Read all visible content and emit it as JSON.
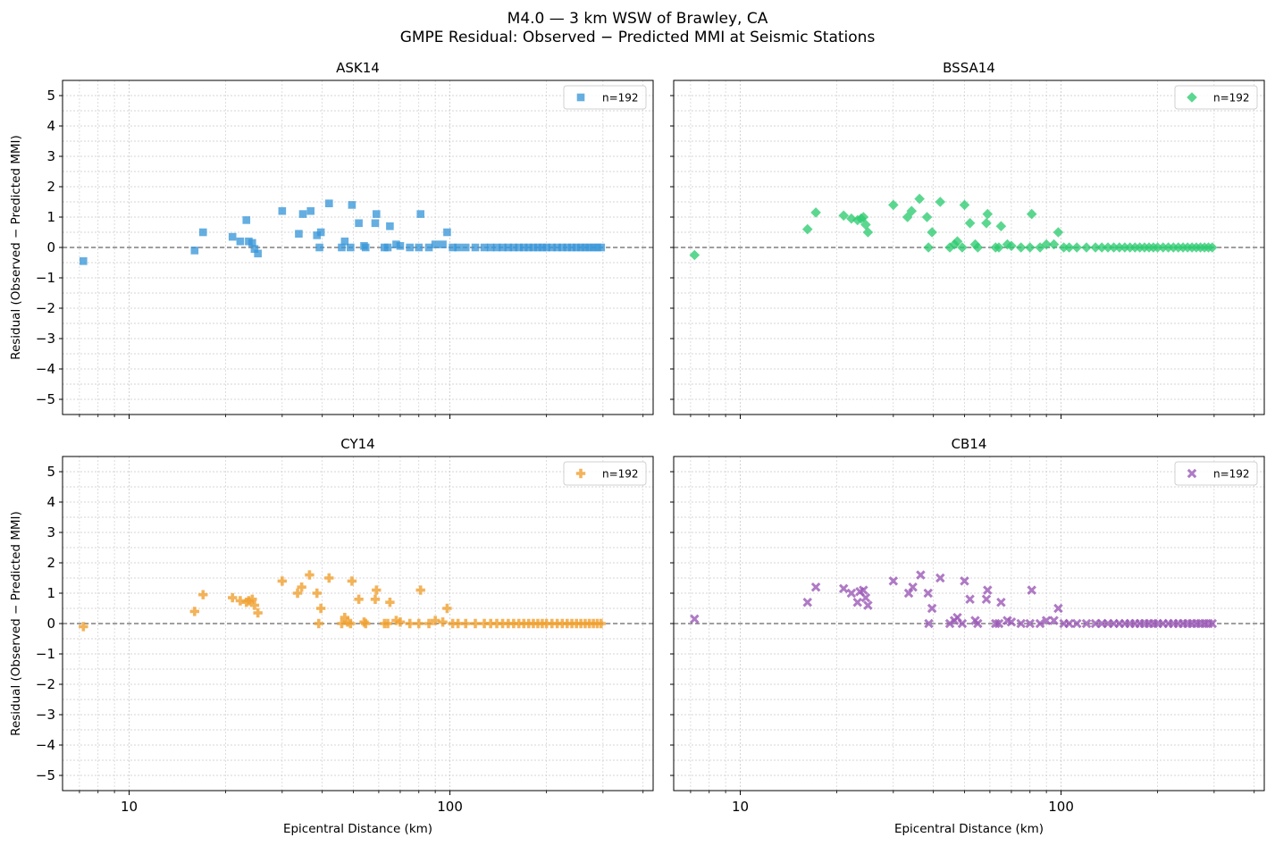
{
  "figure": {
    "title_line1": "M4.0 — 3 km WSW of Brawley, CA",
    "title_line2": "GMPE Residual: Observed − Predicted MMI at Seismic Stations"
  },
  "colors": {
    "ASK14": "#3a97d8",
    "BSSA14": "#2ecc71",
    "CY14": "#f0a030",
    "CB14": "#9b59b6"
  },
  "chart_data": [
    {
      "type": "scatter",
      "title": "ASK14",
      "marker": "square",
      "legend": "n=192",
      "legend_position": "upper-right",
      "xlabel": "",
      "ylabel": "Residual (Observed − Predicted MMI)",
      "x_scale": "log",
      "xlim": [
        6.2,
        430
      ],
      "ylim": [
        -5.5,
        5.5
      ],
      "x_ticks": [
        10,
        100
      ],
      "x_tick_labels": [
        "",
        ""
      ],
      "y_ticks": [
        -5,
        -4,
        -3,
        -2,
        -1,
        0,
        1,
        2,
        3,
        4,
        5
      ],
      "y_tick_labels": [
        "−5",
        "−4",
        "−3",
        "−2",
        "−1",
        "0",
        "1",
        "2",
        "3",
        "4",
        "5"
      ],
      "grid": true,
      "reference_line_y": 0,
      "points": [
        [
          7.2,
          -0.45
        ],
        [
          16,
          -0.1
        ],
        [
          17,
          0.5
        ],
        [
          21,
          0.35
        ],
        [
          22.2,
          0.2
        ],
        [
          23.2,
          0.9
        ],
        [
          23.6,
          0.2
        ],
        [
          24.2,
          0.15
        ],
        [
          24.6,
          -0.05
        ],
        [
          25.2,
          -0.2
        ],
        [
          30,
          1.2
        ],
        [
          33.8,
          0.45
        ],
        [
          34.8,
          1.1
        ],
        [
          36.8,
          1.2
        ],
        [
          38.5,
          0.4
        ],
        [
          39.2,
          0.0
        ],
        [
          39.6,
          0.5
        ],
        [
          42,
          1.45
        ],
        [
          46,
          0.0
        ],
        [
          47,
          0.2
        ],
        [
          49,
          0.0
        ],
        [
          49.5,
          1.4
        ],
        [
          52,
          0.8
        ],
        [
          54,
          0.05
        ],
        [
          54.6,
          0.0
        ],
        [
          58.5,
          0.8
        ],
        [
          59,
          1.1
        ],
        [
          62.5,
          0.0
        ],
        [
          64,
          0.0
        ],
        [
          65,
          0.7
        ],
        [
          68,
          0.1
        ],
        [
          70,
          0.05
        ],
        [
          75,
          0.0
        ],
        [
          80,
          0.0
        ],
        [
          81,
          1.1
        ],
        [
          86,
          0.0
        ],
        [
          90,
          0.1
        ],
        [
          95,
          0.1
        ],
        [
          98,
          0.5
        ],
        [
          102,
          0.0
        ],
        [
          106,
          0.0
        ],
        [
          112,
          0.0
        ],
        [
          120,
          0.0
        ],
        [
          128,
          0.0
        ],
        [
          134,
          0.0
        ],
        [
          140,
          0.0
        ],
        [
          146,
          0.0
        ],
        [
          152,
          0.0
        ],
        [
          158,
          0.0
        ],
        [
          164,
          0.0
        ],
        [
          170,
          0.0
        ],
        [
          176,
          0.0
        ],
        [
          182,
          0.0
        ],
        [
          188,
          0.0
        ],
        [
          194,
          0.0
        ],
        [
          200,
          0.0
        ],
        [
          208,
          0.0
        ],
        [
          216,
          0.0
        ],
        [
          224,
          0.0
        ],
        [
          232,
          0.0
        ],
        [
          240,
          0.0
        ],
        [
          248,
          0.0
        ],
        [
          256,
          0.0
        ],
        [
          264,
          0.0
        ],
        [
          272,
          0.0
        ],
        [
          280,
          0.0
        ],
        [
          288,
          0.0
        ],
        [
          296,
          0.0
        ]
      ]
    },
    {
      "type": "scatter",
      "title": "BSSA14",
      "marker": "diamond",
      "legend": "n=192",
      "legend_position": "upper-right",
      "xlabel": "",
      "ylabel": "",
      "x_scale": "log",
      "xlim": [
        6.2,
        430
      ],
      "ylim": [
        -5.5,
        5.5
      ],
      "x_ticks": [
        10,
        100
      ],
      "x_tick_labels": [
        "",
        ""
      ],
      "y_ticks": [
        -5,
        -4,
        -3,
        -2,
        -1,
        0,
        1,
        2,
        3,
        4,
        5
      ],
      "y_tick_labels": [
        "",
        "",
        "",
        "",
        "",
        "",
        "",
        "",
        "",
        "",
        ""
      ],
      "grid": true,
      "reference_line_y": 0,
      "points": [
        [
          7.2,
          -0.25
        ],
        [
          16.2,
          0.6
        ],
        [
          17.2,
          1.15
        ],
        [
          21,
          1.05
        ],
        [
          22.2,
          0.95
        ],
        [
          23.2,
          0.9
        ],
        [
          23.8,
          0.95
        ],
        [
          24.2,
          1.0
        ],
        [
          24.6,
          0.75
        ],
        [
          25,
          0.5
        ],
        [
          30,
          1.4
        ],
        [
          33.2,
          1.0
        ],
        [
          34.2,
          1.2
        ],
        [
          36.2,
          1.6
        ],
        [
          38.2,
          1.0
        ],
        [
          38.6,
          0.0
        ],
        [
          39.6,
          0.5
        ],
        [
          42,
          1.5
        ],
        [
          45,
          0.0
        ],
        [
          46.5,
          0.1
        ],
        [
          47.5,
          0.2
        ],
        [
          49.2,
          0.0
        ],
        [
          50,
          1.4
        ],
        [
          52,
          0.8
        ],
        [
          54,
          0.1
        ],
        [
          55,
          0.0
        ],
        [
          58.5,
          0.8
        ],
        [
          59,
          1.1
        ],
        [
          62.5,
          0.0
        ],
        [
          64,
          0.0
        ],
        [
          65,
          0.7
        ],
        [
          68,
          0.1
        ],
        [
          70,
          0.05
        ],
        [
          75,
          0.0
        ],
        [
          80,
          0.0
        ],
        [
          81,
          1.1
        ],
        [
          86,
          0.0
        ],
        [
          90,
          0.1
        ],
        [
          95,
          0.1
        ],
        [
          98,
          0.5
        ],
        [
          102,
          0.0
        ],
        [
          106,
          0.0
        ],
        [
          112,
          0.0
        ],
        [
          120,
          0.0
        ],
        [
          128,
          0.0
        ],
        [
          134,
          0.0
        ],
        [
          140,
          0.0
        ],
        [
          146,
          0.0
        ],
        [
          152,
          0.0
        ],
        [
          158,
          0.0
        ],
        [
          164,
          0.0
        ],
        [
          170,
          0.0
        ],
        [
          176,
          0.0
        ],
        [
          182,
          0.0
        ],
        [
          188,
          0.0
        ],
        [
          194,
          0.0
        ],
        [
          200,
          0.0
        ],
        [
          208,
          0.0
        ],
        [
          216,
          0.0
        ],
        [
          224,
          0.0
        ],
        [
          232,
          0.0
        ],
        [
          240,
          0.0
        ],
        [
          248,
          0.0
        ],
        [
          256,
          0.0
        ],
        [
          264,
          0.0
        ],
        [
          272,
          0.0
        ],
        [
          280,
          0.0
        ],
        [
          288,
          0.0
        ],
        [
          296,
          0.0
        ]
      ]
    },
    {
      "type": "scatter",
      "title": "CY14",
      "marker": "plus",
      "legend": "n=192",
      "legend_position": "upper-right",
      "xlabel": "Epicentral Distance (km)",
      "ylabel": "Residual (Observed − Predicted MMI)",
      "x_scale": "log",
      "xlim": [
        6.2,
        430
      ],
      "ylim": [
        -5.5,
        5.5
      ],
      "x_ticks": [
        10,
        100
      ],
      "x_tick_labels": [
        "10",
        "100"
      ],
      "y_ticks": [
        -5,
        -4,
        -3,
        -2,
        -1,
        0,
        1,
        2,
        3,
        4,
        5
      ],
      "y_tick_labels": [
        "−5",
        "−4",
        "−3",
        "−2",
        "−1",
        "0",
        "1",
        "2",
        "3",
        "4",
        "5"
      ],
      "grid": true,
      "reference_line_y": 0,
      "points": [
        [
          7.2,
          -0.1
        ],
        [
          16,
          0.4
        ],
        [
          17,
          0.95
        ],
        [
          21,
          0.85
        ],
        [
          22.2,
          0.75
        ],
        [
          23.2,
          0.7
        ],
        [
          23.6,
          0.75
        ],
        [
          24.2,
          0.8
        ],
        [
          24.6,
          0.6
        ],
        [
          25.2,
          0.35
        ],
        [
          30,
          1.4
        ],
        [
          33.5,
          1.0
        ],
        [
          34.5,
          1.2
        ],
        [
          36.5,
          1.6
        ],
        [
          38.5,
          1.0
        ],
        [
          39,
          0.0
        ],
        [
          39.6,
          0.5
        ],
        [
          42,
          1.5
        ],
        [
          46,
          0.0
        ],
        [
          47,
          0.2
        ],
        [
          48,
          0.05
        ],
        [
          49,
          0.0
        ],
        [
          49.5,
          1.4
        ],
        [
          52,
          0.8
        ],
        [
          54,
          0.05
        ],
        [
          54.6,
          0.0
        ],
        [
          58.5,
          0.8
        ],
        [
          59,
          1.1
        ],
        [
          62.5,
          0.0
        ],
        [
          64,
          0.0
        ],
        [
          65,
          0.7
        ],
        [
          68,
          0.1
        ],
        [
          70,
          0.05
        ],
        [
          75,
          0.0
        ],
        [
          80,
          0.0
        ],
        [
          81,
          1.1
        ],
        [
          86,
          0.0
        ],
        [
          90,
          0.1
        ],
        [
          95,
          0.05
        ],
        [
          98,
          0.5
        ],
        [
          102,
          0.0
        ],
        [
          106,
          0.0
        ],
        [
          112,
          0.0
        ],
        [
          120,
          0.0
        ],
        [
          128,
          0.0
        ],
        [
          134,
          0.0
        ],
        [
          140,
          0.0
        ],
        [
          146,
          0.0
        ],
        [
          152,
          0.0
        ],
        [
          158,
          0.0
        ],
        [
          164,
          0.0
        ],
        [
          170,
          0.0
        ],
        [
          176,
          0.0
        ],
        [
          182,
          0.0
        ],
        [
          188,
          0.0
        ],
        [
          194,
          0.0
        ],
        [
          200,
          0.0
        ],
        [
          208,
          0.0
        ],
        [
          216,
          0.0
        ],
        [
          224,
          0.0
        ],
        [
          232,
          0.0
        ],
        [
          240,
          0.0
        ],
        [
          248,
          0.0
        ],
        [
          256,
          0.0
        ],
        [
          264,
          0.0
        ],
        [
          272,
          0.0
        ],
        [
          280,
          0.0
        ],
        [
          288,
          0.0
        ],
        [
          296,
          0.0
        ]
      ]
    },
    {
      "type": "scatter",
      "title": "CB14",
      "marker": "x",
      "legend": "n=192",
      "legend_position": "upper-right",
      "xlabel": "Epicentral Distance (km)",
      "ylabel": "",
      "x_scale": "log",
      "xlim": [
        6.2,
        430
      ],
      "ylim": [
        -5.5,
        5.5
      ],
      "x_ticks": [
        10,
        100
      ],
      "x_tick_labels": [
        "10",
        "100"
      ],
      "y_ticks": [
        -5,
        -4,
        -3,
        -2,
        -1,
        0,
        1,
        2,
        3,
        4,
        5
      ],
      "y_tick_labels": [
        "",
        "",
        "",
        "",
        "",
        "",
        "",
        "",
        "",
        "",
        ""
      ],
      "grid": true,
      "reference_line_y": 0,
      "points": [
        [
          7.2,
          0.15
        ],
        [
          16.2,
          0.7
        ],
        [
          17.2,
          1.2
        ],
        [
          21,
          1.15
        ],
        [
          22.2,
          1.0
        ],
        [
          23.2,
          0.7
        ],
        [
          23.6,
          1.05
        ],
        [
          24.2,
          1.1
        ],
        [
          24.6,
          0.85
        ],
        [
          25,
          0.6
        ],
        [
          30,
          1.4
        ],
        [
          33.5,
          1.0
        ],
        [
          34.5,
          1.2
        ],
        [
          36.5,
          1.6
        ],
        [
          38.5,
          1.0
        ],
        [
          38.7,
          0.0
        ],
        [
          39.6,
          0.5
        ],
        [
          42,
          1.5
        ],
        [
          45,
          0.0
        ],
        [
          46.5,
          0.1
        ],
        [
          47.5,
          0.2
        ],
        [
          49.2,
          0.0
        ],
        [
          50,
          1.4
        ],
        [
          52,
          0.8
        ],
        [
          54,
          0.1
        ],
        [
          55,
          0.0
        ],
        [
          58.5,
          0.8
        ],
        [
          59,
          1.1
        ],
        [
          62.5,
          0.0
        ],
        [
          64,
          0.0
        ],
        [
          65,
          0.7
        ],
        [
          68,
          0.1
        ],
        [
          70,
          0.05
        ],
        [
          75,
          0.0
        ],
        [
          80,
          0.0
        ],
        [
          81,
          1.1
        ],
        [
          86,
          0.0
        ],
        [
          90,
          0.1
        ],
        [
          95,
          0.1
        ],
        [
          98,
          0.5
        ],
        [
          102,
          0.0
        ],
        [
          106,
          0.0
        ],
        [
          112,
          0.0
        ],
        [
          120,
          0.0
        ],
        [
          128,
          0.0
        ],
        [
          134,
          0.0
        ],
        [
          140,
          0.0
        ],
        [
          146,
          0.0
        ],
        [
          152,
          0.0
        ],
        [
          158,
          0.0
        ],
        [
          164,
          0.0
        ],
        [
          170,
          0.0
        ],
        [
          176,
          0.0
        ],
        [
          182,
          0.0
        ],
        [
          188,
          0.0
        ],
        [
          194,
          0.0
        ],
        [
          200,
          0.0
        ],
        [
          208,
          0.0
        ],
        [
          216,
          0.0
        ],
        [
          224,
          0.0
        ],
        [
          232,
          0.0
        ],
        [
          240,
          0.0
        ],
        [
          248,
          0.0
        ],
        [
          256,
          0.0
        ],
        [
          264,
          0.0
        ],
        [
          272,
          0.0
        ],
        [
          280,
          0.0
        ],
        [
          288,
          0.0
        ],
        [
          296,
          0.0
        ]
      ]
    }
  ]
}
